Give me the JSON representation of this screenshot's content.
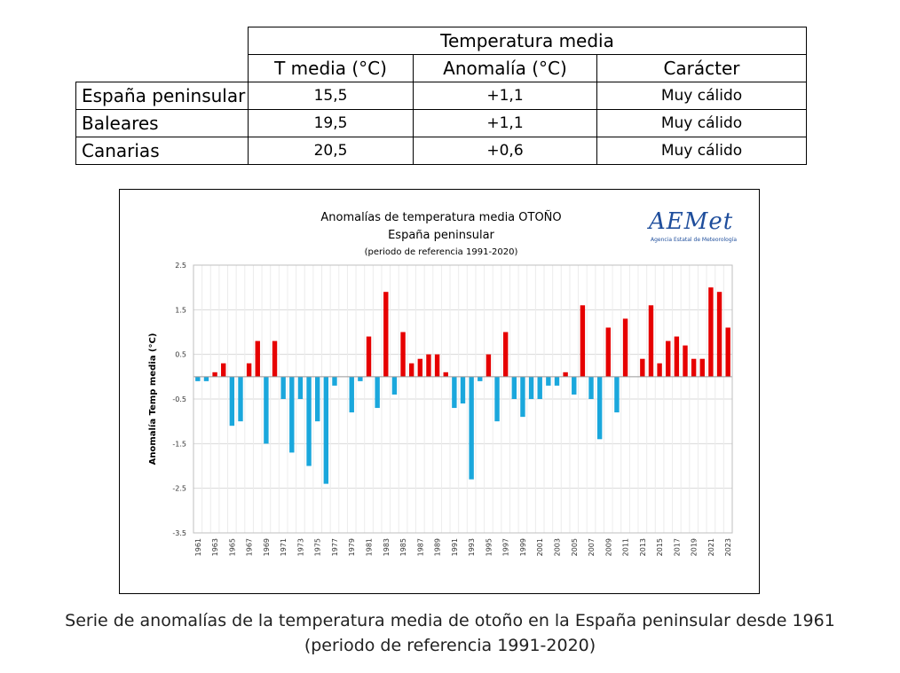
{
  "table": {
    "group_header": "Temperatura media",
    "columns": [
      "T media (°C)",
      "Anomalía (°C)",
      "Carácter"
    ],
    "rows": [
      {
        "region": "España peninsular",
        "t_media": "15,5",
        "anomalia": "+1,1",
        "caracter": "Muy cálido"
      },
      {
        "region": "Baleares",
        "t_media": "19,5",
        "anomalia": "+1,1",
        "caracter": "Muy cálido"
      },
      {
        "region": "Canarias",
        "t_media": "20,5",
        "anomalia": "+0,6",
        "caracter": "Muy cálido"
      }
    ]
  },
  "logo": {
    "name": "AEMet",
    "subtitle": "Agencia Estatal de Meteorología"
  },
  "caption": {
    "line1": "Serie de anomalías de la temperatura media de otoño en la España peninsular desde 1961",
    "line2": "(periodo de referencia 1991-2020)"
  },
  "chart_data": {
    "type": "bar",
    "title": "Anomalías de temperatura media OTOÑO",
    "subtitle": "España peninsular",
    "note": "(periodo de referencia 1991-2020)",
    "ylabel": "Anomalía Temp media (°C)",
    "xlabel": "",
    "ylim": [
      -3.5,
      2.5
    ],
    "yticks": [
      "2.5",
      "1.5",
      "0.5",
      "-0.5",
      "-1.5",
      "-2.5",
      "-3.5"
    ],
    "grid": true,
    "positive_color": "#e60000",
    "negative_color": "#1aa7dc",
    "x": [
      1961,
      1962,
      1963,
      1964,
      1965,
      1966,
      1967,
      1968,
      1969,
      1970,
      1971,
      1972,
      1973,
      1974,
      1975,
      1976,
      1977,
      1978,
      1979,
      1980,
      1981,
      1982,
      1983,
      1984,
      1985,
      1986,
      1987,
      1988,
      1989,
      1990,
      1991,
      1992,
      1993,
      1994,
      1995,
      1996,
      1997,
      1998,
      1999,
      2000,
      2001,
      2002,
      2003,
      2004,
      2005,
      2006,
      2007,
      2008,
      2009,
      2010,
      2011,
      2012,
      2013,
      2014,
      2015,
      2016,
      2017,
      2018,
      2019,
      2020,
      2021,
      2022,
      2023
    ],
    "values": [
      -0.1,
      -0.1,
      0.1,
      0.3,
      -1.1,
      -1.0,
      0.3,
      0.8,
      -1.5,
      0.8,
      -0.5,
      -1.7,
      -0.5,
      -2.0,
      -1.0,
      -2.4,
      -0.2,
      0.0,
      -0.8,
      -0.1,
      0.9,
      -0.7,
      1.9,
      -0.4,
      1.0,
      0.3,
      0.4,
      0.5,
      0.5,
      0.1,
      -0.7,
      -0.6,
      -2.3,
      -0.1,
      0.5,
      -1.0,
      1.0,
      -0.5,
      -0.9,
      -0.5,
      -0.5,
      -0.2,
      -0.2,
      0.1,
      -0.4,
      1.6,
      -0.5,
      -1.4,
      1.1,
      -0.8,
      1.3,
      0.0,
      0.4,
      1.6,
      0.3,
      0.8,
      0.9,
      0.7,
      0.4,
      0.4,
      2.0,
      1.9,
      1.1
    ]
  }
}
